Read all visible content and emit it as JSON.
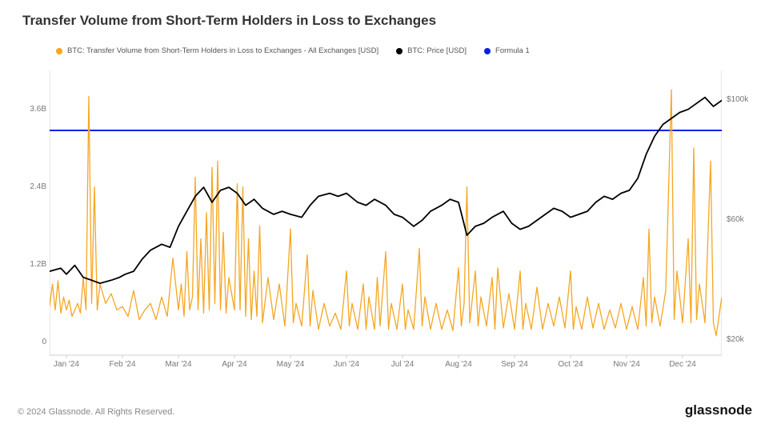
{
  "title": "Transfer Volume from Short-Term Holders in Loss to Exchanges",
  "legend": {
    "series1": {
      "label": "BTC: Transfer Volume from Short-Term Holders in Loss to Exchanges - All Exchanges [USD]",
      "color": "#f5a623"
    },
    "series2": {
      "label": "BTC: Price [USD]",
      "color": "#000000"
    },
    "series3": {
      "label": "Formula 1",
      "color": "#0a1eea"
    }
  },
  "footer": "© 2024 Glassnode. All Rights Reserved.",
  "brand": "glassnode",
  "chart": {
    "type": "line-dual-axis",
    "background_color": "#ffffff",
    "grid": {
      "visible": false
    },
    "border_color": "#cfcfcf",
    "x": {
      "labels": [
        "Jan '24",
        "Feb '24",
        "Mar '24",
        "Apr '24",
        "May '24",
        "Jun '24",
        "Jul '24",
        "Aug '24",
        "Sep '24",
        "Oct '24",
        "Nov '24",
        "Dec '24"
      ],
      "positions": [
        0,
        1,
        2,
        3,
        4,
        5,
        6,
        7,
        8,
        9,
        10,
        11
      ],
      "range": [
        -0.3,
        11.7
      ]
    },
    "y_left": {
      "label_suffix": "B",
      "ticks": [
        0,
        1.2,
        2.4,
        3.6
      ],
      "tick_labels": [
        "0",
        "1.2B",
        "2.4B",
        "3.6B"
      ],
      "range": [
        -0.2,
        4.2
      ]
    },
    "y_right": {
      "label_suffix": "k",
      "ticks": [
        20,
        60,
        100
      ],
      "tick_labels": [
        "$20k",
        "$60k",
        "$100k"
      ],
      "range": [
        15,
        110
      ]
    },
    "horizontal_line": {
      "value_right": 90,
      "color": "#0a1eea",
      "width": 2
    },
    "price_line": {
      "color": "#000000",
      "width": 1.8,
      "points_right_axis": [
        [
          -0.3,
          43
        ],
        [
          -0.1,
          44
        ],
        [
          0.0,
          42
        ],
        [
          0.15,
          45
        ],
        [
          0.3,
          41
        ],
        [
          0.45,
          40
        ],
        [
          0.6,
          39
        ],
        [
          0.8,
          40
        ],
        [
          0.95,
          41
        ],
        [
          1.05,
          42
        ],
        [
          1.2,
          43
        ],
        [
          1.35,
          47
        ],
        [
          1.5,
          50
        ],
        [
          1.7,
          52
        ],
        [
          1.85,
          51
        ],
        [
          2.0,
          58
        ],
        [
          2.15,
          63
        ],
        [
          2.3,
          68
        ],
        [
          2.45,
          71
        ],
        [
          2.6,
          66
        ],
        [
          2.75,
          70
        ],
        [
          2.9,
          71
        ],
        [
          3.05,
          69
        ],
        [
          3.2,
          65
        ],
        [
          3.35,
          67
        ],
        [
          3.5,
          64
        ],
        [
          3.7,
          62
        ],
        [
          3.85,
          63
        ],
        [
          4.0,
          62
        ],
        [
          4.2,
          61
        ],
        [
          4.35,
          65
        ],
        [
          4.5,
          68
        ],
        [
          4.7,
          69
        ],
        [
          4.85,
          68
        ],
        [
          5.0,
          69
        ],
        [
          5.2,
          66
        ],
        [
          5.35,
          65
        ],
        [
          5.5,
          67
        ],
        [
          5.7,
          65
        ],
        [
          5.85,
          62
        ],
        [
          6.0,
          61
        ],
        [
          6.2,
          58
        ],
        [
          6.35,
          60
        ],
        [
          6.5,
          63
        ],
        [
          6.7,
          65
        ],
        [
          6.85,
          67
        ],
        [
          7.0,
          66
        ],
        [
          7.15,
          55
        ],
        [
          7.3,
          58
        ],
        [
          7.45,
          59
        ],
        [
          7.6,
          61
        ],
        [
          7.8,
          63
        ],
        [
          7.95,
          59
        ],
        [
          8.1,
          57
        ],
        [
          8.25,
          58
        ],
        [
          8.4,
          60
        ],
        [
          8.55,
          62
        ],
        [
          8.7,
          64
        ],
        [
          8.85,
          63
        ],
        [
          9.0,
          61
        ],
        [
          9.15,
          62
        ],
        [
          9.3,
          63
        ],
        [
          9.45,
          66
        ],
        [
          9.6,
          68
        ],
        [
          9.75,
          67
        ],
        [
          9.9,
          69
        ],
        [
          10.05,
          70
        ],
        [
          10.2,
          74
        ],
        [
          10.35,
          82
        ],
        [
          10.5,
          88
        ],
        [
          10.65,
          92
        ],
        [
          10.8,
          94
        ],
        [
          10.95,
          96
        ],
        [
          11.1,
          97
        ],
        [
          11.25,
          99
        ],
        [
          11.4,
          101
        ],
        [
          11.55,
          98
        ],
        [
          11.7,
          100
        ]
      ]
    },
    "volume_line": {
      "color": "#f5a623",
      "width": 1.3,
      "points_left_axis": [
        [
          -0.3,
          0.55
        ],
        [
          -0.25,
          0.9
        ],
        [
          -0.2,
          0.5
        ],
        [
          -0.15,
          0.95
        ],
        [
          -0.1,
          0.45
        ],
        [
          -0.05,
          0.7
        ],
        [
          0.0,
          0.5
        ],
        [
          0.05,
          0.65
        ],
        [
          0.1,
          0.4
        ],
        [
          0.2,
          0.6
        ],
        [
          0.25,
          0.45
        ],
        [
          0.3,
          1.0
        ],
        [
          0.35,
          0.5
        ],
        [
          0.4,
          3.8
        ],
        [
          0.45,
          0.6
        ],
        [
          0.5,
          2.4
        ],
        [
          0.55,
          0.5
        ],
        [
          0.6,
          0.9
        ],
        [
          0.7,
          0.6
        ],
        [
          0.8,
          0.75
        ],
        [
          0.9,
          0.5
        ],
        [
          1.0,
          0.55
        ],
        [
          1.1,
          0.4
        ],
        [
          1.2,
          0.8
        ],
        [
          1.3,
          0.35
        ],
        [
          1.4,
          0.5
        ],
        [
          1.5,
          0.6
        ],
        [
          1.6,
          0.35
        ],
        [
          1.7,
          0.7
        ],
        [
          1.8,
          0.4
        ],
        [
          1.9,
          1.3
        ],
        [
          2.0,
          0.5
        ],
        [
          2.05,
          0.9
        ],
        [
          2.1,
          0.4
        ],
        [
          2.15,
          1.4
        ],
        [
          2.2,
          0.5
        ],
        [
          2.25,
          0.7
        ],
        [
          2.3,
          2.55
        ],
        [
          2.35,
          0.5
        ],
        [
          2.4,
          1.6
        ],
        [
          2.45,
          0.45
        ],
        [
          2.5,
          2.0
        ],
        [
          2.55,
          0.5
        ],
        [
          2.6,
          2.7
        ],
        [
          2.65,
          0.6
        ],
        [
          2.7,
          2.8
        ],
        [
          2.75,
          0.5
        ],
        [
          2.8,
          1.7
        ],
        [
          2.85,
          0.45
        ],
        [
          2.9,
          1.0
        ],
        [
          3.0,
          0.5
        ],
        [
          3.05,
          2.45
        ],
        [
          3.1,
          0.5
        ],
        [
          3.15,
          2.4
        ],
        [
          3.2,
          0.4
        ],
        [
          3.25,
          1.6
        ],
        [
          3.3,
          0.35
        ],
        [
          3.35,
          1.1
        ],
        [
          3.4,
          0.4
        ],
        [
          3.45,
          1.8
        ],
        [
          3.5,
          0.3
        ],
        [
          3.6,
          1.0
        ],
        [
          3.7,
          0.35
        ],
        [
          3.8,
          0.9
        ],
        [
          3.9,
          0.25
        ],
        [
          4.0,
          1.75
        ],
        [
          4.05,
          0.3
        ],
        [
          4.1,
          0.6
        ],
        [
          4.2,
          0.25
        ],
        [
          4.3,
          1.35
        ],
        [
          4.35,
          0.25
        ],
        [
          4.4,
          0.8
        ],
        [
          4.5,
          0.2
        ],
        [
          4.6,
          0.6
        ],
        [
          4.7,
          0.25
        ],
        [
          4.8,
          0.45
        ],
        [
          4.9,
          0.2
        ],
        [
          5.0,
          1.1
        ],
        [
          5.05,
          0.25
        ],
        [
          5.1,
          0.6
        ],
        [
          5.2,
          0.2
        ],
        [
          5.3,
          0.9
        ],
        [
          5.35,
          0.2
        ],
        [
          5.4,
          0.7
        ],
        [
          5.5,
          0.2
        ],
        [
          5.55,
          1.0
        ],
        [
          5.6,
          0.25
        ],
        [
          5.7,
          1.4
        ],
        [
          5.75,
          0.2
        ],
        [
          5.8,
          0.6
        ],
        [
          5.9,
          0.2
        ],
        [
          6.0,
          0.9
        ],
        [
          6.05,
          0.2
        ],
        [
          6.1,
          0.5
        ],
        [
          6.2,
          0.2
        ],
        [
          6.3,
          1.45
        ],
        [
          6.35,
          0.25
        ],
        [
          6.4,
          0.7
        ],
        [
          6.5,
          0.2
        ],
        [
          6.6,
          0.6
        ],
        [
          6.7,
          0.2
        ],
        [
          6.8,
          0.5
        ],
        [
          6.9,
          0.18
        ],
        [
          7.0,
          1.15
        ],
        [
          7.05,
          0.25
        ],
        [
          7.1,
          0.6
        ],
        [
          7.15,
          2.4
        ],
        [
          7.2,
          0.3
        ],
        [
          7.3,
          1.1
        ],
        [
          7.35,
          0.25
        ],
        [
          7.4,
          0.7
        ],
        [
          7.5,
          0.25
        ],
        [
          7.6,
          1.0
        ],
        [
          7.65,
          0.2
        ],
        [
          7.7,
          1.15
        ],
        [
          7.8,
          0.22
        ],
        [
          7.9,
          0.75
        ],
        [
          8.0,
          0.2
        ],
        [
          8.1,
          1.1
        ],
        [
          8.15,
          0.2
        ],
        [
          8.2,
          0.6
        ],
        [
          8.3,
          0.2
        ],
        [
          8.4,
          0.85
        ],
        [
          8.5,
          0.2
        ],
        [
          8.6,
          0.6
        ],
        [
          8.7,
          0.25
        ],
        [
          8.8,
          0.7
        ],
        [
          8.9,
          0.22
        ],
        [
          9.0,
          1.1
        ],
        [
          9.05,
          0.2
        ],
        [
          9.1,
          0.55
        ],
        [
          9.2,
          0.2
        ],
        [
          9.3,
          0.7
        ],
        [
          9.4,
          0.22
        ],
        [
          9.5,
          0.6
        ],
        [
          9.6,
          0.2
        ],
        [
          9.7,
          0.5
        ],
        [
          9.8,
          0.22
        ],
        [
          9.9,
          0.6
        ],
        [
          10.0,
          0.2
        ],
        [
          10.1,
          0.55
        ],
        [
          10.2,
          0.2
        ],
        [
          10.3,
          1.0
        ],
        [
          10.35,
          0.25
        ],
        [
          10.4,
          1.75
        ],
        [
          10.45,
          0.3
        ],
        [
          10.5,
          0.7
        ],
        [
          10.6,
          0.25
        ],
        [
          10.7,
          0.8
        ],
        [
          10.8,
          3.9
        ],
        [
          10.85,
          0.35
        ],
        [
          10.9,
          1.1
        ],
        [
          11.0,
          0.3
        ],
        [
          11.1,
          1.6
        ],
        [
          11.15,
          0.3
        ],
        [
          11.2,
          3.0
        ],
        [
          11.25,
          0.35
        ],
        [
          11.3,
          0.9
        ],
        [
          11.4,
          0.3
        ],
        [
          11.5,
          2.8
        ],
        [
          11.55,
          0.3
        ],
        [
          11.6,
          0.1
        ],
        [
          11.7,
          0.7
        ]
      ]
    },
    "layout": {
      "title_fontsize": 17,
      "tick_fontsize": 10,
      "legend_fontsize": 9.5
    }
  }
}
